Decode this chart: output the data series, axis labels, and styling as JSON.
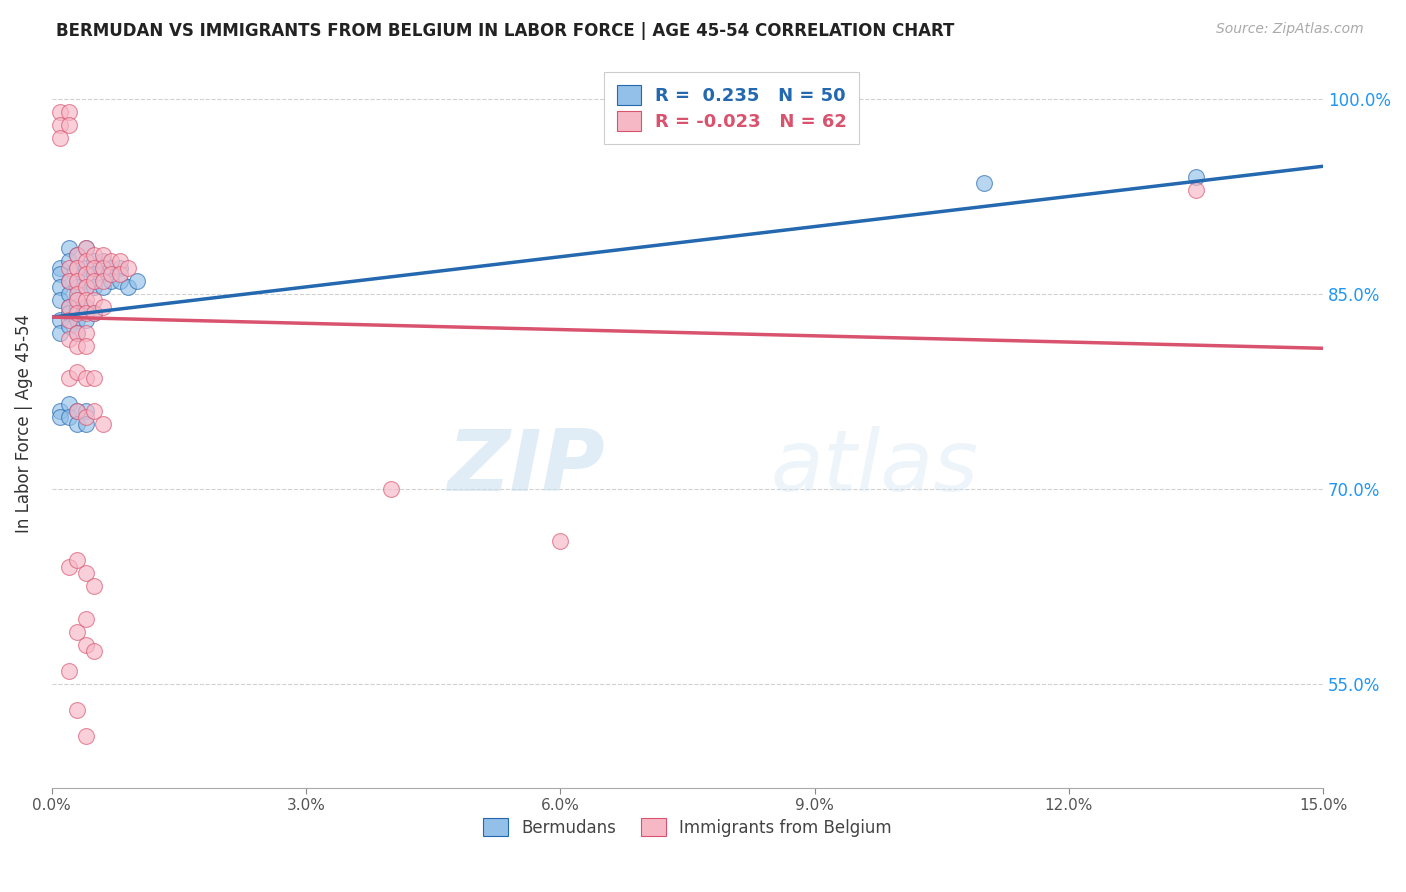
{
  "title": "BERMUDAN VS IMMIGRANTS FROM BELGIUM IN LABOR FORCE | AGE 45-54 CORRELATION CHART",
  "source": "Source: ZipAtlas.com",
  "ylabel": "In Labor Force | Age 45-54",
  "y_ticks": [
    55.0,
    70.0,
    85.0,
    100.0
  ],
  "y_tick_labels": [
    "55.0%",
    "70.0%",
    "85.0%",
    "100.0%"
  ],
  "xlim": [
    0.0,
    0.15
  ],
  "ylim": [
    0.47,
    1.03
  ],
  "blue_color": "#92c0e8",
  "pink_color": "#f7b8c6",
  "blue_line_color": "#2468b0",
  "pink_line_color": "#d9526e",
  "legend_R_blue": "R =  0.235",
  "legend_N_blue": "N = 50",
  "legend_R_pink": "R = -0.023",
  "legend_N_pink": "N = 62",
  "legend_label_blue": "Bermudans",
  "legend_label_pink": "Immigrants from Belgium",
  "blue_scatter_x": [
    0.001,
    0.001,
    0.001,
    0.001,
    0.002,
    0.002,
    0.002,
    0.002,
    0.002,
    0.003,
    0.003,
    0.003,
    0.003,
    0.003,
    0.004,
    0.004,
    0.004,
    0.004,
    0.005,
    0.005,
    0.005,
    0.006,
    0.006,
    0.006,
    0.007,
    0.007,
    0.008,
    0.008,
    0.009,
    0.01,
    0.001,
    0.001,
    0.002,
    0.002,
    0.003,
    0.003,
    0.003,
    0.004,
    0.004,
    0.005,
    0.001,
    0.001,
    0.002,
    0.002,
    0.003,
    0.003,
    0.004,
    0.004,
    0.11,
    0.135
  ],
  "blue_scatter_y": [
    0.87,
    0.865,
    0.855,
    0.845,
    0.885,
    0.875,
    0.86,
    0.85,
    0.84,
    0.88,
    0.87,
    0.86,
    0.855,
    0.845,
    0.885,
    0.87,
    0.865,
    0.855,
    0.875,
    0.865,
    0.855,
    0.875,
    0.865,
    0.855,
    0.87,
    0.86,
    0.87,
    0.86,
    0.855,
    0.86,
    0.83,
    0.82,
    0.835,
    0.825,
    0.84,
    0.83,
    0.82,
    0.84,
    0.83,
    0.835,
    0.76,
    0.755,
    0.765,
    0.755,
    0.76,
    0.75,
    0.76,
    0.75,
    0.935,
    0.94
  ],
  "pink_scatter_x": [
    0.001,
    0.001,
    0.001,
    0.002,
    0.002,
    0.002,
    0.002,
    0.003,
    0.003,
    0.003,
    0.003,
    0.004,
    0.004,
    0.004,
    0.004,
    0.005,
    0.005,
    0.005,
    0.006,
    0.006,
    0.006,
    0.007,
    0.007,
    0.008,
    0.008,
    0.009,
    0.002,
    0.002,
    0.003,
    0.003,
    0.004,
    0.004,
    0.005,
    0.005,
    0.006,
    0.002,
    0.003,
    0.003,
    0.004,
    0.004,
    0.002,
    0.003,
    0.004,
    0.005,
    0.003,
    0.004,
    0.005,
    0.006,
    0.04,
    0.06,
    0.002,
    0.003,
    0.004,
    0.005,
    0.004,
    0.003,
    0.004,
    0.005,
    0.135,
    0.002,
    0.003,
    0.004
  ],
  "pink_scatter_y": [
    0.99,
    0.98,
    0.97,
    0.99,
    0.98,
    0.87,
    0.86,
    0.88,
    0.87,
    0.86,
    0.85,
    0.885,
    0.875,
    0.865,
    0.855,
    0.88,
    0.87,
    0.86,
    0.88,
    0.87,
    0.86,
    0.875,
    0.865,
    0.875,
    0.865,
    0.87,
    0.84,
    0.83,
    0.845,
    0.835,
    0.845,
    0.835,
    0.845,
    0.835,
    0.84,
    0.815,
    0.82,
    0.81,
    0.82,
    0.81,
    0.785,
    0.79,
    0.785,
    0.785,
    0.76,
    0.755,
    0.76,
    0.75,
    0.7,
    0.66,
    0.64,
    0.645,
    0.635,
    0.625,
    0.6,
    0.59,
    0.58,
    0.575,
    0.93,
    0.56,
    0.53,
    0.51
  ],
  "watermark_zip": "ZIP",
  "watermark_atlas": "atlas",
  "background_color": "#ffffff",
  "grid_color": "#cccccc"
}
